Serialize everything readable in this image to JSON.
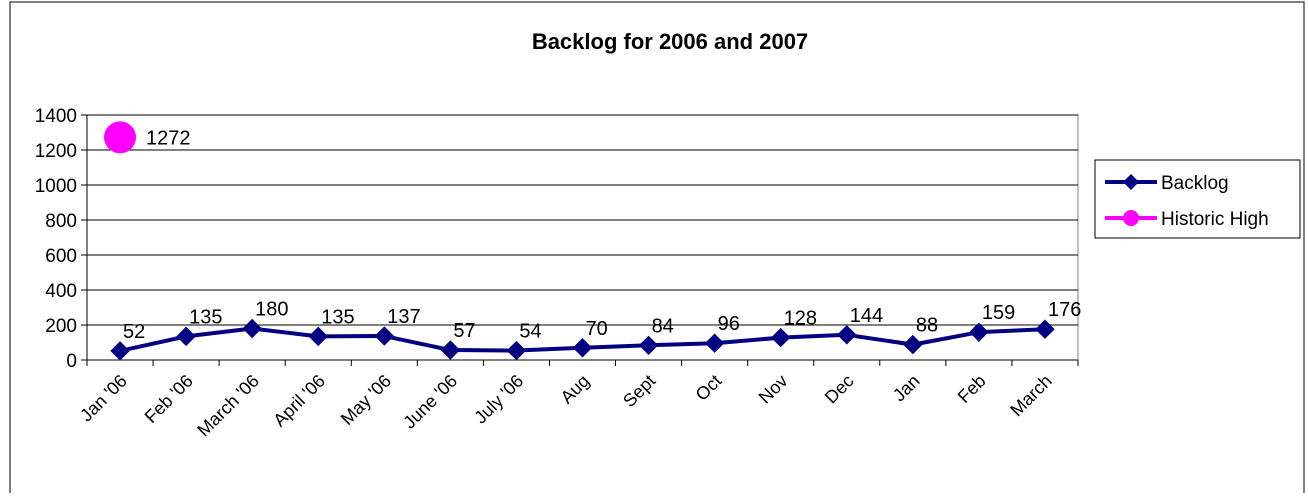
{
  "chart_data": {
    "type": "line",
    "title": "Backlog for 2006 and 2007",
    "xlabel": "",
    "ylabel": "",
    "ylim": [
      0,
      1400
    ],
    "yticks": [
      0,
      200,
      400,
      600,
      800,
      1000,
      1200,
      1400
    ],
    "grid": true,
    "legend_position": "right",
    "categories": [
      "Jan '06",
      "Feb '06",
      "March '06",
      "April '06",
      "May '06",
      "June '06",
      "July '06",
      "Aug",
      "Sept",
      "Oct",
      "Nov",
      "Dec",
      "Jan",
      "Feb",
      "March"
    ],
    "series": [
      {
        "name": "Backlog",
        "color": "#000080",
        "marker": "diamond",
        "values": [
          52,
          135,
          180,
          135,
          137,
          57,
          54,
          70,
          84,
          96,
          128,
          144,
          88,
          159,
          176
        ],
        "labels": [
          "52",
          "135",
          "180",
          "135",
          "137",
          "57",
          "54",
          "70",
          "84",
          "96",
          "128",
          "144",
          "88",
          "159",
          "176"
        ]
      },
      {
        "name": "Historic High",
        "color": "#ff00ff",
        "marker": "circle",
        "values": [
          1272,
          null,
          null,
          null,
          null,
          null,
          null,
          null,
          null,
          null,
          null,
          null,
          null,
          null,
          null
        ],
        "labels": [
          "1272",
          "",
          "",
          "",
          "",
          "",
          "",
          "",
          "",
          "",
          "",
          "",
          "",
          "",
          ""
        ]
      }
    ]
  }
}
